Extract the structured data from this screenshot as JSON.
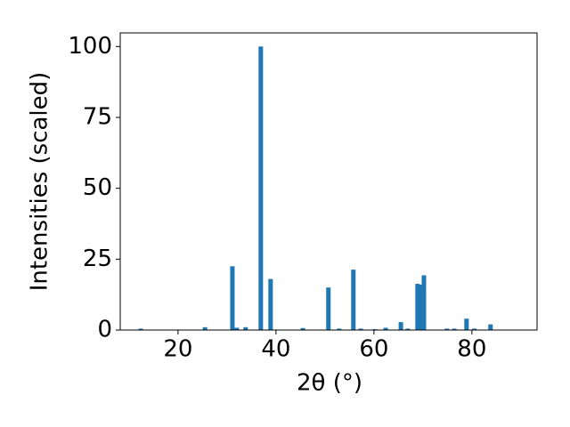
{
  "chart_data": {
    "type": "bar",
    "x_label": "2θ (°)",
    "y_label": "Intensities (scaled)",
    "color": "#1f77b4",
    "x": [
      12.4,
      25.5,
      31.1,
      32.0,
      33.8,
      36.9,
      38.9,
      45.5,
      50.7,
      52.9,
      55.8,
      57.3,
      60.2,
      62.4,
      65.5,
      66.9,
      68.9,
      69.5,
      70.2,
      74.9,
      76.4,
      78.9,
      80.5,
      83.8
    ],
    "values": [
      0.5,
      1.0,
      22.5,
      0.8,
      1.0,
      100,
      18,
      0.7,
      15,
      0.5,
      21.3,
      0.5,
      0.3,
      0.8,
      2.8,
      0.5,
      16.3,
      16,
      19.3,
      0.5,
      0.5,
      4,
      0.5,
      2
    ],
    "xlim": [
      8.2,
      93.3
    ],
    "ylim": [
      0,
      104.8
    ],
    "xticks": [
      20,
      40,
      60,
      80
    ],
    "yticks": [
      0,
      25,
      50,
      75,
      100
    ]
  }
}
